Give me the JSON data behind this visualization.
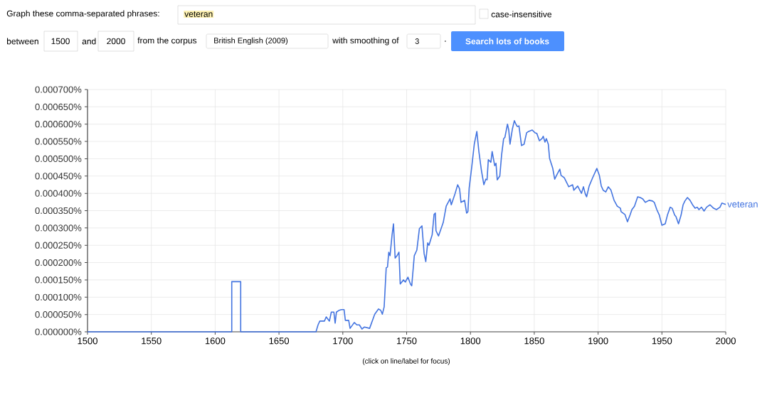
{
  "chart_data": {
    "type": "line",
    "annotations": [
      "Graph these comma-separated phrases:",
      "veteran",
      "case-insensitive",
      "between",
      "1500",
      "and",
      "2000",
      "from the corpus",
      "British English (2009)",
      "with smoothing of",
      "3",
      ".",
      "Search lots of books",
      "(click on line/label for focus)"
    ],
    "series": [
      {
        "name": "veteran",
        "color": "#4374e0",
        "x": [
          1500,
          1613,
          1613,
          1620,
          1620,
          1678,
          1679,
          1680.6,
          1682,
          1685.6,
          1687,
          1689.5,
          1691,
          1693,
          1694,
          1695,
          1697,
          1699,
          1701,
          1702,
          1704.6,
          1705.7,
          1709,
          1711,
          1713,
          1715,
          1717,
          1721,
          1725,
          1728,
          1729.7,
          1731,
          1732.4,
          1734,
          1735,
          1736,
          1737,
          1738.6,
          1739.7,
          1741,
          1742.5,
          1744,
          1745,
          1747.5,
          1749,
          1751,
          1753,
          1754,
          1756,
          1758,
          1760,
          1762,
          1763.7,
          1765,
          1766.5,
          1767.5,
          1770,
          1771.5,
          1772.5,
          1773,
          1775,
          1777,
          1778.7,
          1781,
          1784,
          1785,
          1788,
          1790,
          1791.5,
          1792.6,
          1795.4,
          1797,
          1798,
          1799,
          1801,
          1803,
          1805,
          1806.6,
          1808.6,
          1810.5,
          1812,
          1813,
          1814,
          1816,
          1817,
          1819,
          1820,
          1821,
          1823,
          1824.4,
          1826,
          1827,
          1829,
          1830,
          1831,
          1832.8,
          1834.4,
          1835.6,
          1836.7,
          1838,
          1840,
          1842,
          1844,
          1845.6,
          1848.4,
          1850.6,
          1852,
          1854,
          1856,
          1857,
          1858.4,
          1859.5,
          1861,
          1862,
          1864.5,
          1866,
          1868,
          1870,
          1871,
          1873.5,
          1875.7,
          1877,
          1880,
          1881,
          1884,
          1887,
          1888.5,
          1890,
          1891,
          1893,
          1895.7,
          1899,
          1901,
          1902.5,
          1904,
          1906,
          1908,
          1910,
          1912.5,
          1915,
          1917.5,
          1918,
          1921,
          1923,
          1925,
          1926.5,
          1928.5,
          1931,
          1933,
          1935,
          1937,
          1940,
          1942.6,
          1944,
          1946,
          1948,
          1950,
          1952.6,
          1954.3,
          1956.5,
          1958,
          1960,
          1961,
          1963,
          1965,
          1966.6,
          1968,
          1970,
          1972,
          1974,
          1976,
          1977.7,
          1979,
          1981,
          1983,
          1985,
          1987.7,
          1990.5,
          1992.7,
          1995.5,
          1997,
          2000
        ],
        "values": [
          0,
          0,
          0.000145,
          0.000145,
          0,
          0,
          0,
          2e-05,
          3.1e-05,
          3.1e-05,
          4.3e-05,
          3.1e-05,
          5.7e-05,
          5.7e-05,
          2.5e-05,
          5.7e-05,
          6.2e-05,
          6.4e-05,
          6.4e-05,
          3.3e-05,
          3.3e-05,
          1e-05,
          2.7e-05,
          2e-05,
          2e-05,
          8e-06,
          1.4e-05,
          1e-05,
          5.1e-05,
          6.6e-05,
          6.2e-05,
          5.1e-05,
          7.2e-05,
          0.000185,
          0.000187,
          0.00023,
          0.00022,
          0.00028,
          0.000312,
          0.000213,
          0.00022,
          0.00023,
          0.000138,
          0.00015,
          0.000144,
          0.000158,
          0.000138,
          0.000133,
          0.00022,
          0.000236,
          0.000298,
          0.000306,
          0.000226,
          0.000203,
          0.000257,
          0.00025,
          0.00028,
          0.000339,
          0.000343,
          0.000292,
          0.000277,
          0.000298,
          0.000316,
          0.000363,
          0.000384,
          0.000367,
          0.0004,
          0.000425,
          0.000413,
          0.000374,
          0.00038,
          0.000343,
          0.000347,
          0.000415,
          0.000476,
          0.000542,
          0.000579,
          0.000521,
          0.000466,
          0.000425,
          0.000441,
          0.000439,
          0.000497,
          0.00049,
          0.000521,
          0.00048,
          0.000487,
          0.000439,
          0.00045,
          0.000511,
          0.000558,
          0.000562,
          0.0006,
          0.000583,
          0.000542,
          0.000585,
          0.00061,
          0.0006,
          0.000593,
          0.000595,
          0.000538,
          0.000542,
          0.000575,
          0.000579,
          0.000583,
          0.000575,
          0.000573,
          0.000552,
          0.000558,
          0.000565,
          0.000548,
          0.000558,
          0.000542,
          0.000501,
          0.000472,
          0.000441,
          0.000456,
          0.00047,
          0.000452,
          0.000445,
          0.000429,
          0.000419,
          0.000425,
          0.000409,
          0.000421,
          0.0004,
          0.000419,
          0.000398,
          0.00039,
          0.000421,
          0.000445,
          0.000472,
          0.000452,
          0.000421,
          0.000409,
          0.000404,
          0.000419,
          0.00041,
          0.00038,
          0.000363,
          0.000357,
          0.000347,
          0.000339,
          0.000318,
          0.000337,
          0.000353,
          0.000363,
          0.00039,
          0.000388,
          0.000384,
          0.000374,
          0.00038,
          0.000378,
          0.000374,
          0.000353,
          0.000337,
          0.000308,
          0.000312,
          0.000337,
          0.00036,
          0.000357,
          0.000337,
          0.000333,
          0.000312,
          0.000337,
          0.000367,
          0.000378,
          0.000388,
          0.00038,
          0.000367,
          0.000357,
          0.00036,
          0.000353,
          0.00036,
          0.000349,
          0.00036,
          0.000367,
          0.000357,
          0.000353,
          0.00036,
          0.000372,
          0.000368
        ]
      }
    ],
    "xlim": [
      1500,
      2000
    ],
    "xticks": [
      1500,
      1550,
      1600,
      1650,
      1700,
      1750,
      1800,
      1850,
      1900,
      1950,
      2000
    ],
    "ylim": [
      0,
      0.0007
    ],
    "yticks": [
      {
        "value": 0,
        "label": "0.000000%"
      },
      {
        "value": 5e-05,
        "label": "0.000050%"
      },
      {
        "value": 0.0001,
        "label": "0.000100%"
      },
      {
        "value": 0.00015,
        "label": "0.000150%"
      },
      {
        "value": 0.0002,
        "label": "0.000200%"
      },
      {
        "value": 0.00025,
        "label": "0.000250%"
      },
      {
        "value": 0.0003,
        "label": "0.000300%"
      },
      {
        "value": 0.00035,
        "label": "0.000350%"
      },
      {
        "value": 0.0004,
        "label": "0.000400%"
      },
      {
        "value": 0.00045,
        "label": "0.000450%"
      },
      {
        "value": 0.0005,
        "label": "0.000500%"
      },
      {
        "value": 0.00055,
        "label": "0.000550%"
      },
      {
        "value": 0.0006,
        "label": "0.000600%"
      },
      {
        "value": 0.00065,
        "label": "0.000650%"
      },
      {
        "value": 0.0007,
        "label": "0.000700%"
      }
    ],
    "grid": true
  }
}
